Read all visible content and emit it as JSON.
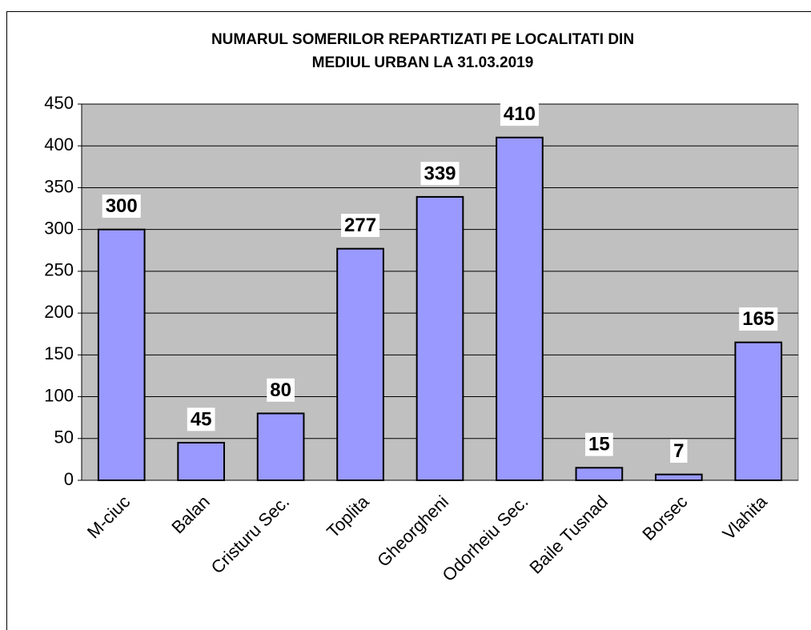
{
  "chart_data": {
    "type": "bar",
    "title": [
      "NUMARUL SOMERILOR REPARTIZATI PE LOCALITATI DIN",
      "MEDIUL URBAN LA 31.03.2019"
    ],
    "categories": [
      "M-ciuc",
      "Balan",
      "Cristuru Sec.",
      "Toplita",
      "Gheorgheni",
      "Odorheiu Sec.",
      "Baile Tusnad",
      "Borsec",
      "Vlahita"
    ],
    "values": [
      300,
      45,
      80,
      277,
      339,
      410,
      15,
      7,
      165
    ],
    "color": "#9999ff",
    "plot_background": "#c0c0c0",
    "ylim": [
      0,
      450
    ],
    "yticks": [
      0,
      50,
      100,
      150,
      200,
      250,
      300,
      350,
      400,
      450
    ],
    "grid": true
  }
}
